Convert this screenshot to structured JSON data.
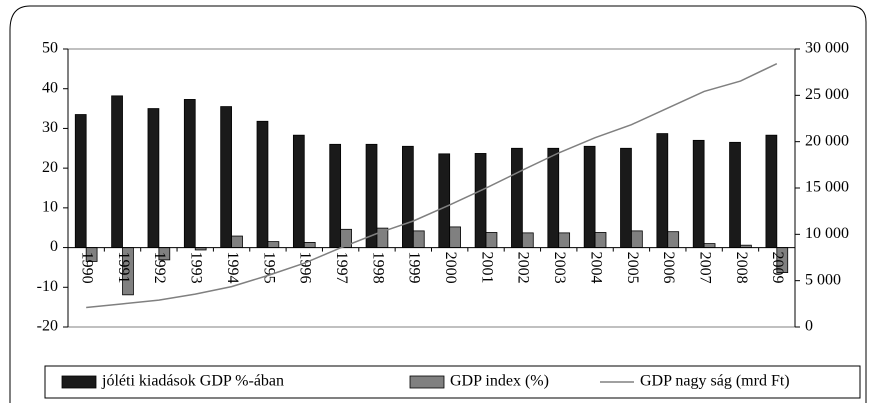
{
  "chart_data": {
    "type": "bar",
    "categories": [
      "1990",
      "1991",
      "1992",
      "1993",
      "1994",
      "1995",
      "1996",
      "1997",
      "1998",
      "1999",
      "2000",
      "2001",
      "2002",
      "2003",
      "2004",
      "2005",
      "2006",
      "2007",
      "2008",
      "2009"
    ],
    "series": [
      {
        "name": "jóléti  kiadások GDP %-ában",
        "color": "#1a1a1a",
        "values": [
          33.5,
          38.2,
          35,
          37.3,
          35.5,
          31.8,
          28.3,
          26,
          26,
          25.5,
          23.6,
          23.7,
          25,
          25,
          25.5,
          25,
          28.7,
          27,
          26.5,
          28.3
        ]
      },
      {
        "name": "GDP index (%)",
        "color": "#808080",
        "values": [
          -3.5,
          -11.9,
          -3.1,
          -0.6,
          2.9,
          1.5,
          1.3,
          4.6,
          4.9,
          4.2,
          5.2,
          3.8,
          3.7,
          3.7,
          3.8,
          4.2,
          4.0,
          1.0,
          0.6,
          -6.3
        ]
      },
      {
        "name": "GDP nagy ság (mrd Ft)",
        "color": "#808080",
        "type": "line",
        "axis": "y2",
        "values": [
          2100,
          2500,
          2900,
          3550,
          4360,
          5560,
          6890,
          8540,
          10090,
          11440,
          13170,
          14990,
          16920,
          18790,
          20430,
          21830,
          23630,
          25420,
          26540,
          28420
        ]
      }
    ],
    "ylim": [
      -20,
      50
    ],
    "yticks": [
      -20,
      -10,
      0,
      10,
      20,
      30,
      40,
      50
    ],
    "y2lim": [
      0,
      30000
    ],
    "y2ticks": [
      0,
      {
        "value": 5000,
        "label": "5 000"
      },
      {
        "value": 10000,
        "label": "10 000"
      },
      {
        "value": 15000,
        "label": "15 000"
      },
      {
        "value": 20000,
        "label": "20 000"
      },
      {
        "value": 25000,
        "label": "25 000"
      },
      {
        "value": 30000,
        "label": "30 000"
      }
    ],
    "grid": false,
    "legend": "bottom"
  }
}
